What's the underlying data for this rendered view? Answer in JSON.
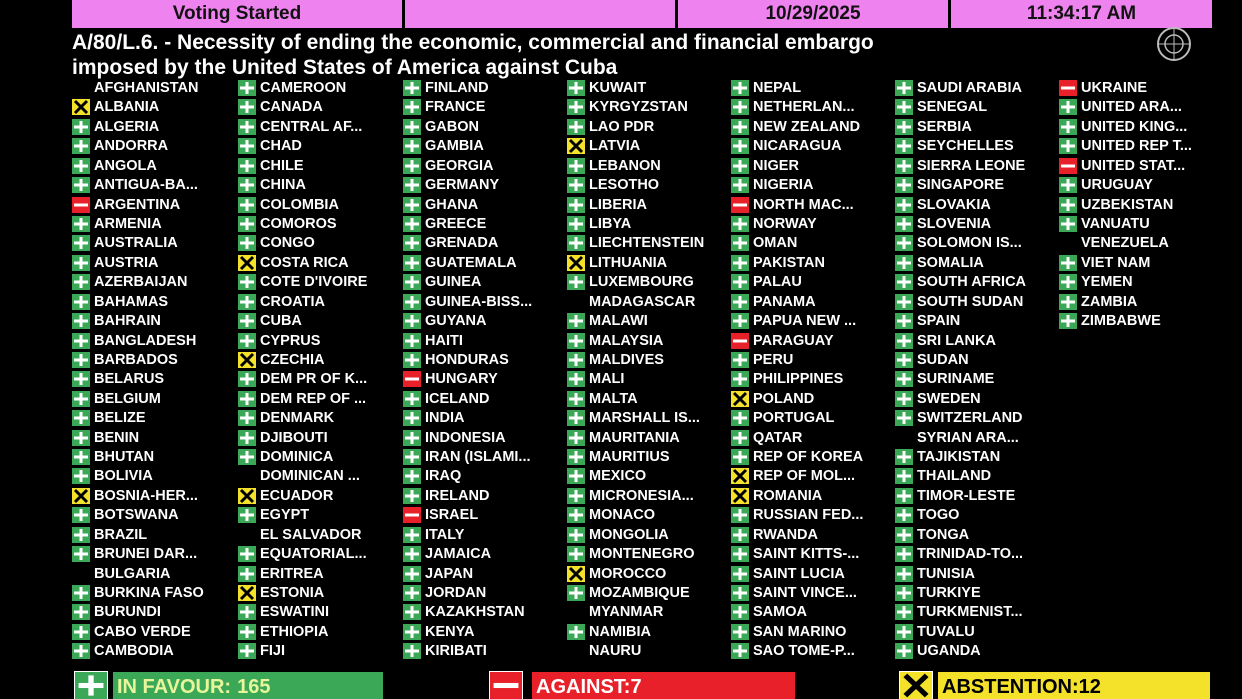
{
  "header": {
    "status": "Voting Started",
    "date": "10/29/2025",
    "time": "11:34:17 AM"
  },
  "title": [
    "A/80/L.6. - Necessity of ending the economic, commercial and financial embargo",
    "imposed by the United States of America against Cuba"
  ],
  "countries": [
    [
      "AFGHANISTAN"
    ],
    [
      "ALBANIA",
      "a"
    ],
    [
      "ALGERIA",
      "y"
    ],
    [
      "ANDORRA",
      "y"
    ],
    [
      "ANGOLA",
      "y"
    ],
    [
      "ANTIGUA-BA...",
      "y"
    ],
    [
      "ARGENTINA",
      "n"
    ],
    [
      "ARMENIA",
      "y"
    ],
    [
      "AUSTRALIA",
      "y"
    ],
    [
      "AUSTRIA",
      "y"
    ],
    [
      "AZERBAIJAN",
      "y"
    ],
    [
      "BAHAMAS",
      "y"
    ],
    [
      "BAHRAIN",
      "y"
    ],
    [
      "BANGLADESH",
      "y"
    ],
    [
      "BARBADOS",
      "y"
    ],
    [
      "BELARUS",
      "y"
    ],
    [
      "BELGIUM",
      "y"
    ],
    [
      "BELIZE",
      "y"
    ],
    [
      "BENIN",
      "y"
    ],
    [
      "BHUTAN",
      "y"
    ],
    [
      "BOLIVIA",
      "y"
    ],
    [
      "BOSNIA-HER...",
      "a"
    ],
    [
      "BOTSWANA",
      "y"
    ],
    [
      "BRAZIL",
      "y"
    ],
    [
      "BRUNEI DAR...",
      "y"
    ],
    [
      "BULGARIA"
    ],
    [
      "BURKINA FASO",
      "y"
    ],
    [
      "BURUNDI",
      "y"
    ],
    [
      "CABO VERDE",
      "y"
    ],
    [
      "CAMBODIA",
      "y"
    ],
    [
      "CAMEROON",
      "y"
    ],
    [
      "CANADA",
      "y"
    ],
    [
      "CENTRAL AF...",
      "y"
    ],
    [
      "CHAD",
      "y"
    ],
    [
      "CHILE",
      "y"
    ],
    [
      "CHINA",
      "y"
    ],
    [
      "COLOMBIA",
      "y"
    ],
    [
      "COMOROS",
      "y"
    ],
    [
      "CONGO",
      "y"
    ],
    [
      "COSTA RICA",
      "a"
    ],
    [
      "COTE D'IVOIRE",
      "y"
    ],
    [
      "CROATIA",
      "y"
    ],
    [
      "CUBA",
      "y"
    ],
    [
      "CYPRUS",
      "y"
    ],
    [
      "CZECHIA",
      "a"
    ],
    [
      "DEM PR OF K...",
      "y"
    ],
    [
      "DEM REP OF ...",
      "y"
    ],
    [
      "DENMARK",
      "y"
    ],
    [
      "DJIBOUTI",
      "y"
    ],
    [
      "DOMINICA",
      "y"
    ],
    [
      "DOMINICAN ..."
    ],
    [
      "ECUADOR",
      "a"
    ],
    [
      "EGYPT",
      "y"
    ],
    [
      "EL SALVADOR"
    ],
    [
      "EQUATORIAL...",
      "y"
    ],
    [
      "ERITREA",
      "y"
    ],
    [
      "ESTONIA",
      "a"
    ],
    [
      "ESWATINI",
      "y"
    ],
    [
      "ETHIOPIA",
      "y"
    ],
    [
      "FIJI",
      "y"
    ],
    [
      "FINLAND",
      "y"
    ],
    [
      "FRANCE",
      "y"
    ],
    [
      "GABON",
      "y"
    ],
    [
      "GAMBIA",
      "y"
    ],
    [
      "GEORGIA",
      "y"
    ],
    [
      "GERMANY",
      "y"
    ],
    [
      "GHANA",
      "y"
    ],
    [
      "GREECE",
      "y"
    ],
    [
      "GRENADA",
      "y"
    ],
    [
      "GUATEMALA",
      "y"
    ],
    [
      "GUINEA",
      "y"
    ],
    [
      "GUINEA-BISS...",
      "y"
    ],
    [
      "GUYANA",
      "y"
    ],
    [
      "HAITI",
      "y"
    ],
    [
      "HONDURAS",
      "y"
    ],
    [
      "HUNGARY",
      "n"
    ],
    [
      "ICELAND",
      "y"
    ],
    [
      "INDIA",
      "y"
    ],
    [
      "INDONESIA",
      "y"
    ],
    [
      "IRAN (ISLAMI...",
      "y"
    ],
    [
      "IRAQ",
      "y"
    ],
    [
      "IRELAND",
      "y"
    ],
    [
      "ISRAEL",
      "n"
    ],
    [
      "ITALY",
      "y"
    ],
    [
      "JAMAICA",
      "y"
    ],
    [
      "JAPAN",
      "y"
    ],
    [
      "JORDAN",
      "y"
    ],
    [
      "KAZAKHSTAN",
      "y"
    ],
    [
      "KENYA",
      "y"
    ],
    [
      "KIRIBATI",
      "y"
    ],
    [
      "KUWAIT",
      "y"
    ],
    [
      "KYRGYZSTAN",
      "y"
    ],
    [
      "LAO PDR",
      "y"
    ],
    [
      "LATVIA",
      "a"
    ],
    [
      "LEBANON",
      "y"
    ],
    [
      "LESOTHO",
      "y"
    ],
    [
      "LIBERIA",
      "y"
    ],
    [
      "LIBYA",
      "y"
    ],
    [
      "LIECHTENSTEIN",
      "y"
    ],
    [
      "LITHUANIA",
      "a"
    ],
    [
      "LUXEMBOURG",
      "y"
    ],
    [
      "MADAGASCAR"
    ],
    [
      "MALAWI",
      "y"
    ],
    [
      "MALAYSIA",
      "y"
    ],
    [
      "MALDIVES",
      "y"
    ],
    [
      "MALI",
      "y"
    ],
    [
      "MALTA",
      "y"
    ],
    [
      "MARSHALL IS...",
      "y"
    ],
    [
      "MAURITANIA",
      "y"
    ],
    [
      "MAURITIUS",
      "y"
    ],
    [
      "MEXICO",
      "y"
    ],
    [
      "MICRONESIA...",
      "y"
    ],
    [
      "MONACO",
      "y"
    ],
    [
      "MONGOLIA",
      "y"
    ],
    [
      "MONTENEGRO",
      "y"
    ],
    [
      "MOROCCO",
      "a"
    ],
    [
      "MOZAMBIQUE",
      "y"
    ],
    [
      "MYANMAR"
    ],
    [
      "NAMIBIA",
      "y"
    ],
    [
      "NAURU"
    ],
    [
      "NEPAL",
      "y"
    ],
    [
      "NETHERLAN...",
      "y"
    ],
    [
      "NEW ZEALAND",
      "y"
    ],
    [
      "NICARAGUA",
      "y"
    ],
    [
      "NIGER",
      "y"
    ],
    [
      "NIGERIA",
      "y"
    ],
    [
      "NORTH MAC...",
      "n"
    ],
    [
      "NORWAY",
      "y"
    ],
    [
      "OMAN",
      "y"
    ],
    [
      "PAKISTAN",
      "y"
    ],
    [
      "PALAU",
      "y"
    ],
    [
      "PANAMA",
      "y"
    ],
    [
      "PAPUA NEW ...",
      "y"
    ],
    [
      "PARAGUAY",
      "n"
    ],
    [
      "PERU",
      "y"
    ],
    [
      "PHILIPPINES",
      "y"
    ],
    [
      "POLAND",
      "a"
    ],
    [
      "PORTUGAL",
      "y"
    ],
    [
      "QATAR",
      "y"
    ],
    [
      "REP OF KOREA",
      "y"
    ],
    [
      "REP OF MOL...",
      "a"
    ],
    [
      "ROMANIA",
      "a"
    ],
    [
      "RUSSIAN FED...",
      "y"
    ],
    [
      "RWANDA",
      "y"
    ],
    [
      "SAINT KITTS-...",
      "y"
    ],
    [
      "SAINT LUCIA",
      "y"
    ],
    [
      "SAINT VINCE...",
      "y"
    ],
    [
      "SAMOA",
      "y"
    ],
    [
      "SAN MARINO",
      "y"
    ],
    [
      "SAO TOME-P...",
      "y"
    ],
    [
      "SAUDI ARABIA",
      "y"
    ],
    [
      "SENEGAL",
      "y"
    ],
    [
      "SERBIA",
      "y"
    ],
    [
      "SEYCHELLES",
      "y"
    ],
    [
      "SIERRA LEONE",
      "y"
    ],
    [
      "SINGAPORE",
      "y"
    ],
    [
      "SLOVAKIA",
      "y"
    ],
    [
      "SLOVENIA",
      "y"
    ],
    [
      "SOLOMON IS...",
      "y"
    ],
    [
      "SOMALIA",
      "y"
    ],
    [
      "SOUTH AFRICA",
      "y"
    ],
    [
      "SOUTH SUDAN",
      "y"
    ],
    [
      "SPAIN",
      "y"
    ],
    [
      "SRI LANKA",
      "y"
    ],
    [
      "SUDAN",
      "y"
    ],
    [
      "SURINAME",
      "y"
    ],
    [
      "SWEDEN",
      "y"
    ],
    [
      "SWITZERLAND",
      "y"
    ],
    [
      "SYRIAN ARA..."
    ],
    [
      "TAJIKISTAN",
      "y"
    ],
    [
      "THAILAND",
      "y"
    ],
    [
      "TIMOR-LESTE",
      "y"
    ],
    [
      "TOGO",
      "y"
    ],
    [
      "TONGA",
      "y"
    ],
    [
      "TRINIDAD-TO...",
      "y"
    ],
    [
      "TUNISIA",
      "y"
    ],
    [
      "TURKIYE",
      "y"
    ],
    [
      "TURKMENIST...",
      "y"
    ],
    [
      "TUVALU",
      "y"
    ],
    [
      "UGANDA",
      "y"
    ],
    [
      "UKRAINE",
      "n"
    ],
    [
      "UNITED ARA...",
      "y"
    ],
    [
      "UNITED KING...",
      "y"
    ],
    [
      "UNITED REP T...",
      "y"
    ],
    [
      "UNITED STAT...",
      "n"
    ],
    [
      "URUGUAY",
      "y"
    ],
    [
      "UZBEKISTAN",
      "y"
    ],
    [
      "VANUATU",
      "y"
    ],
    [
      "VENEZUELA"
    ],
    [
      "VIET NAM",
      "y"
    ],
    [
      "YEMEN",
      "y"
    ],
    [
      "ZAMBIA",
      "y"
    ],
    [
      "ZIMBABWE",
      "y"
    ]
  ],
  "totals": [
    {
      "label": "IN FAVOUR:",
      "count": 165,
      "vote": "y"
    },
    {
      "label": "AGAINST:",
      "count": 7,
      "vote": "n"
    },
    {
      "label": "ABSTENTION:",
      "count": 12,
      "vote": "a"
    }
  ]
}
